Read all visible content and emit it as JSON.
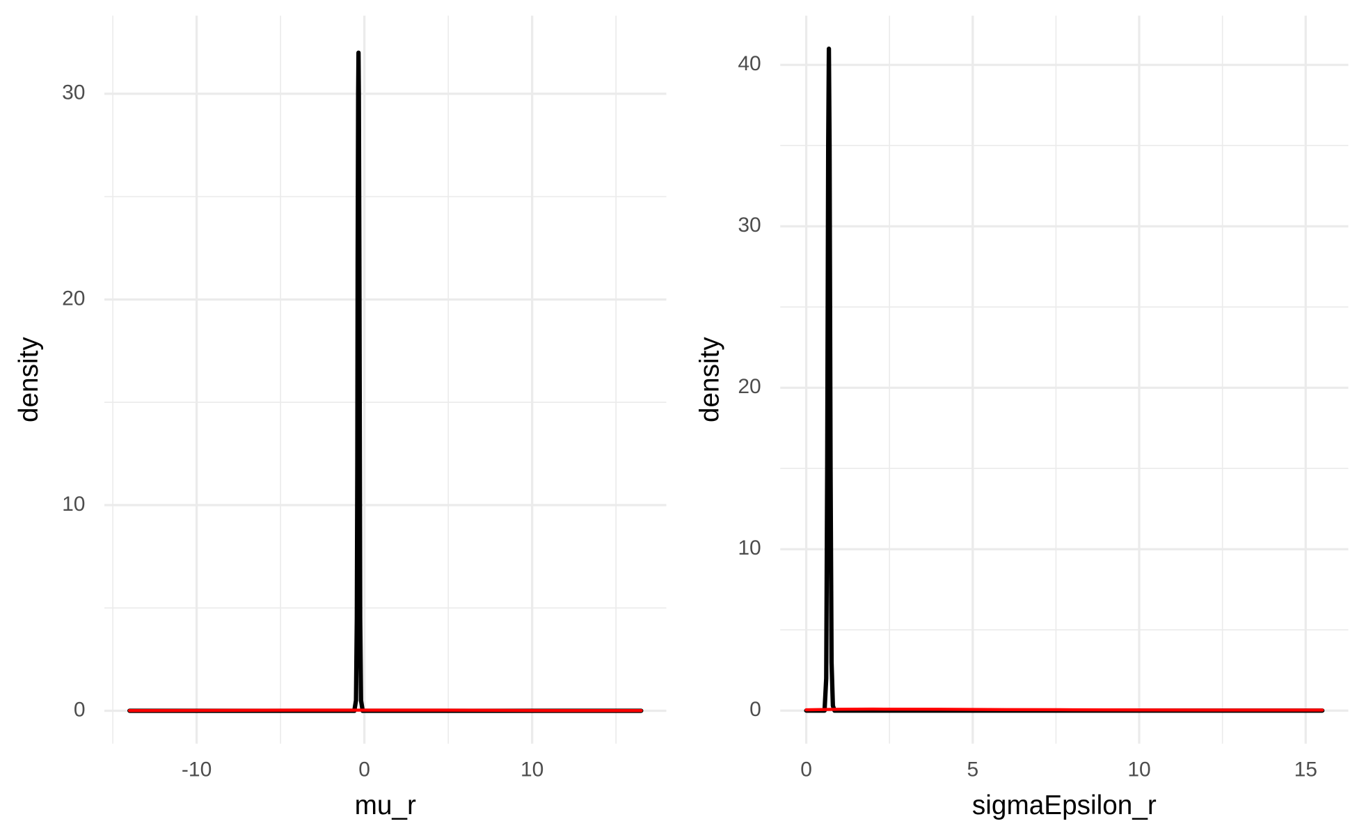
{
  "chart_data": [
    {
      "type": "line",
      "xlabel": "mu_r",
      "ylabel": "density",
      "xlim": [
        -15.5,
        18.0
      ],
      "ylim": [
        -1.6,
        33.8
      ],
      "xticks": [
        -10,
        0,
        10
      ],
      "yticks": [
        0,
        10,
        20,
        30
      ],
      "x_minor_ticks": [
        -15,
        -5,
        5,
        15
      ],
      "y_minor_ticks": [
        5,
        15,
        25
      ],
      "grid": true,
      "series": [
        {
          "color": "#000000",
          "x": [
            -14,
            -0.6,
            -0.5,
            -0.45,
            -0.42,
            -0.4,
            -0.37,
            -0.35,
            -0.33,
            -0.3,
            -0.27,
            -0.25,
            -0.2,
            -0.1,
            16.5
          ],
          "values": [
            0,
            0,
            0.5,
            4.5,
            12,
            22,
            30,
            32,
            30,
            22,
            12,
            4.5,
            0.5,
            0,
            0
          ]
        },
        {
          "color": "#ff0000",
          "x": [
            -14,
            -8,
            -4,
            0,
            4,
            8,
            12,
            16.5
          ],
          "values": [
            0.01,
            0.02,
            0.03,
            0.03,
            0.03,
            0.02,
            0.01,
            0.01
          ]
        }
      ]
    },
    {
      "type": "line",
      "xlabel": "sigmaEpsilon_r",
      "ylabel": "density",
      "xlim": [
        -0.78,
        16.28
      ],
      "ylim": [
        -2.05,
        43.05
      ],
      "xticks": [
        0,
        5,
        10,
        15
      ],
      "yticks": [
        0,
        10,
        20,
        30,
        40
      ],
      "x_minor_ticks": [
        2.5,
        7.5,
        12.5
      ],
      "y_minor_ticks": [
        5,
        15,
        25,
        35
      ],
      "grid": true,
      "series": [
        {
          "color": "#000000",
          "x": [
            0,
            0.55,
            0.6,
            0.63,
            0.66,
            0.68,
            0.7,
            0.73,
            0.76,
            0.8,
            0.85,
            15.5
          ],
          "values": [
            0,
            0,
            2,
            15,
            35,
            41,
            35,
            15,
            3,
            0.3,
            0,
            0
          ]
        },
        {
          "color": "#ff0000",
          "x": [
            0,
            1,
            2,
            4,
            6,
            8,
            10,
            12,
            15.5
          ],
          "values": [
            0.05,
            0.08,
            0.09,
            0.08,
            0.06,
            0.05,
            0.04,
            0.03,
            0.03
          ]
        }
      ]
    }
  ]
}
